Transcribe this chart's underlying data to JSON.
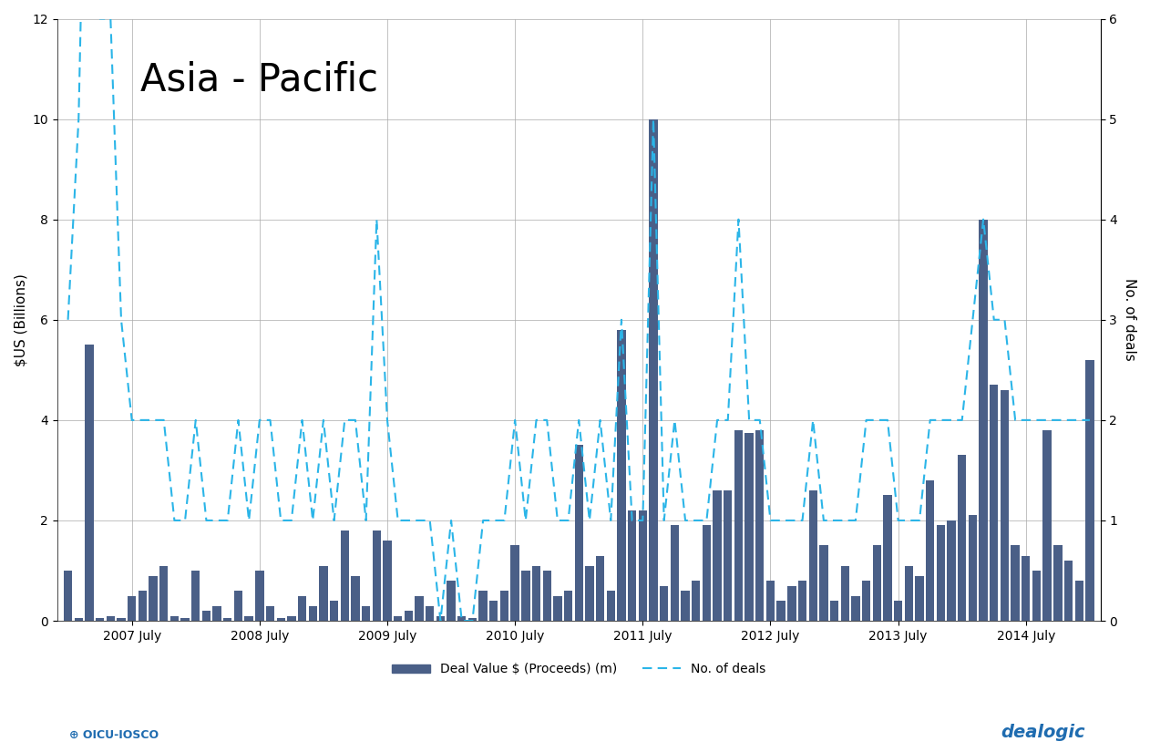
{
  "title": "Asia - Pacific",
  "ylabel_left": "$US (Billions)",
  "ylabel_right": "No. of deals",
  "ylim_left": [
    0,
    12
  ],
  "ylim_right": [
    0,
    6
  ],
  "yticks_left": [
    0,
    2,
    4,
    6,
    8,
    10,
    12
  ],
  "yticks_right": [
    0,
    1,
    2,
    3,
    4,
    5,
    6
  ],
  "bar_color": "#4A5F87",
  "line_color": "#2BB5E8",
  "background_color": "#FFFFFF",
  "legend_bar_label": "Deal Value $ (Proceeds) (m)",
  "legend_line_label": "No. of deals",
  "xtick_labels": [
    "2007 July",
    "2008 July",
    "2009 July",
    "2010 July",
    "2011 July",
    "2012 July",
    "2013 July",
    "2014 July"
  ],
  "xtick_positions": [
    6,
    18,
    30,
    42,
    54,
    66,
    78,
    90
  ],
  "n_months": 97,
  "bar_values": [
    1.0,
    0.05,
    5.5,
    0.05,
    0.1,
    0.05,
    0.5,
    0.6,
    0.9,
    1.1,
    0.1,
    0.05,
    1.0,
    0.2,
    0.3,
    0.05,
    0.6,
    0.1,
    1.0,
    0.3,
    0.05,
    0.1,
    0.5,
    0.3,
    1.1,
    0.4,
    1.8,
    0.9,
    0.3,
    1.8,
    1.6,
    0.1,
    0.2,
    0.5,
    0.3,
    0.1,
    0.8,
    0.1,
    0.05,
    0.6,
    0.4,
    0.6,
    1.5,
    1.0,
    1.1,
    1.0,
    0.5,
    0.6,
    3.5,
    1.1,
    1.3,
    0.6,
    5.8,
    2.2,
    2.2,
    10.0,
    0.7,
    1.9,
    0.6,
    0.8,
    1.9,
    2.6,
    2.6,
    3.8,
    3.75,
    3.8,
    0.8,
    0.4,
    0.7,
    0.8,
    2.6,
    1.5,
    0.4,
    1.1,
    0.5,
    0.8,
    1.5,
    2.5,
    0.4,
    1.1,
    0.9,
    2.8,
    1.9,
    2.0,
    3.3,
    2.1,
    8.0,
    4.7,
    4.6,
    1.5,
    1.3,
    1.0,
    3.8,
    1.5,
    1.2,
    0.8,
    5.2
  ],
  "line_values": [
    3,
    5,
    10,
    6,
    6,
    3,
    2,
    2,
    2,
    2,
    1,
    1,
    2,
    1,
    1,
    1,
    2,
    1,
    2,
    2,
    1,
    1,
    2,
    1,
    2,
    1,
    2,
    2,
    1,
    4,
    2,
    1,
    1,
    1,
    1,
    0,
    1,
    0,
    0,
    1,
    1,
    1,
    2,
    1,
    2,
    2,
    1,
    1,
    2,
    1,
    2,
    1,
    3,
    1,
    1,
    5,
    1,
    2,
    1,
    1,
    1,
    2,
    2,
    4,
    2,
    2,
    1,
    1,
    1,
    1,
    2,
    1,
    1,
    1,
    1,
    2,
    2,
    2,
    1,
    1,
    1,
    2,
    2,
    2,
    2,
    3,
    4,
    3,
    3,
    2,
    2,
    2,
    2,
    2,
    2,
    2,
    2
  ]
}
